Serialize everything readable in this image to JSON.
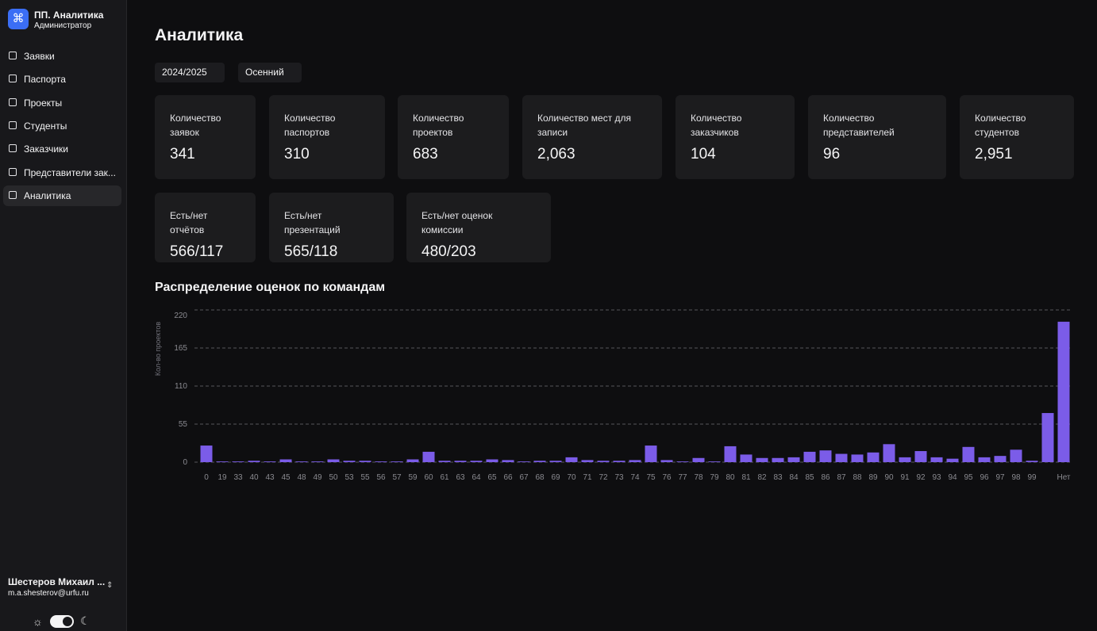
{
  "sidebar": {
    "app_name": "ПП. Аналитика",
    "role": "Администратор",
    "nav": [
      "Заявки",
      "Паспорта",
      "Проекты",
      "Студенты",
      "Заказчики",
      "Представители зак...",
      "Аналитика"
    ],
    "user_name": "Шестеров Михаил ...",
    "user_email": "m.a.shesterov@urfu.ru"
  },
  "header": {
    "title": "Аналитика",
    "filters": [
      "2024/2025",
      "Осенний"
    ]
  },
  "cards": [
    {
      "label": "Количество заявок",
      "value": "341"
    },
    {
      "label": "Количество паспортов",
      "value": "310"
    },
    {
      "label": "Количество проектов",
      "value": "683"
    },
    {
      "label": "Количество мест для записи",
      "value": "2,063"
    },
    {
      "label": "Количество заказчиков",
      "value": "104"
    },
    {
      "label": "Количество представителей",
      "value": "96"
    },
    {
      "label": "Количество студентов",
      "value": "2,951"
    },
    {
      "label": "Есть/нет отчётов",
      "value": "566/117"
    },
    {
      "label": "Есть/нет презентаций",
      "value": "565/118"
    },
    {
      "label": "Есть/нет оценок комиссии",
      "value": "480/203"
    }
  ],
  "chart_data": {
    "type": "bar",
    "title": "Распределение оценок по командам",
    "y_label": "Кол-во проектов",
    "color": "#7b5ce8",
    "categories": [
      "0",
      "19",
      "33",
      "40",
      "43",
      "45",
      "48",
      "49",
      "50",
      "53",
      "55",
      "56",
      "57",
      "59",
      "60",
      "61",
      "63",
      "64",
      "65",
      "66",
      "67",
      "68",
      "69",
      "70",
      "71",
      "72",
      "73",
      "74",
      "75",
      "76",
      "77",
      "78",
      "79",
      "80",
      "81",
      "82",
      "83",
      "84",
      "85",
      "86",
      "87",
      "88",
      "89",
      "90",
      "91",
      "92",
      "93",
      "94",
      "95",
      "96",
      "97",
      "98",
      "99",
      null,
      "Нет"
    ],
    "values": [
      24,
      1,
      1,
      2,
      1,
      4,
      1,
      1,
      4,
      2,
      2,
      1,
      1,
      4,
      15,
      2,
      2,
      2,
      4,
      3,
      1,
      2,
      2,
      7,
      3,
      2,
      2,
      3,
      24,
      3,
      1,
      6,
      1,
      23,
      11,
      6,
      6,
      7,
      15,
      17,
      12,
      11,
      14,
      26,
      7,
      16,
      7,
      5,
      22,
      7,
      9,
      18,
      2,
      71,
      203
    ],
    "ylim": [
      0,
      220
    ],
    "yticks": [
      0,
      55,
      110,
      165,
      220
    ],
    "grid": true
  }
}
